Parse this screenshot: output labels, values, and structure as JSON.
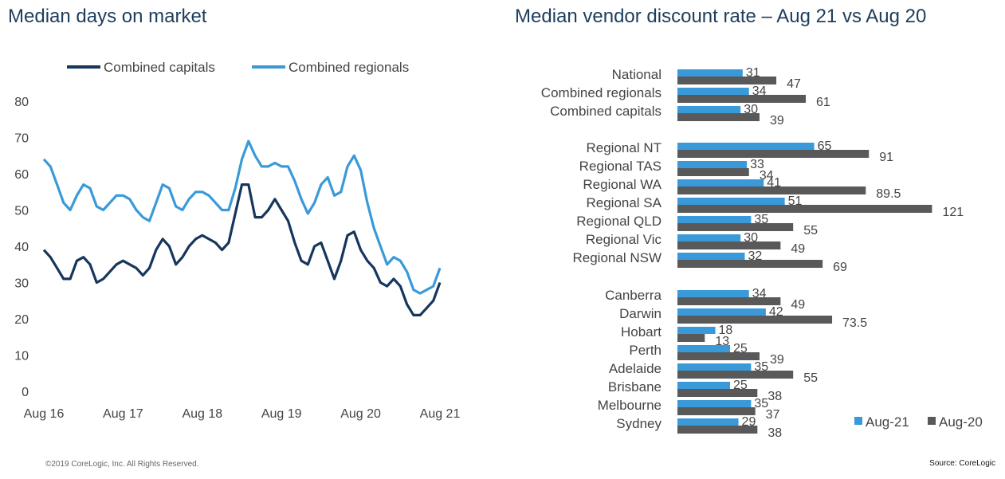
{
  "header": {
    "left_title": "Median days on market",
    "right_title": "Median vendor discount rate – Aug 21 vs Aug 20"
  },
  "footer": {
    "copyright": "©2019 CoreLogic, Inc. All Rights Reserved.",
    "source": "Source: CoreLogic"
  },
  "colors": {
    "capitals": "#16365c",
    "regionals": "#3a9ad9",
    "aug21": "#3a9ad9",
    "aug20": "#595959",
    "title": "#1d3d5c"
  },
  "chart_data": [
    {
      "type": "line",
      "title": "Median days on market",
      "x_ticks": [
        "Aug 16",
        "Aug 17",
        "Aug 18",
        "Aug 19",
        "Aug 20",
        "Aug 21"
      ],
      "ylim": [
        0,
        80
      ],
      "y_ticks": [
        0,
        10,
        20,
        30,
        40,
        50,
        60,
        70,
        80
      ],
      "grid": false,
      "legend_position": "top",
      "series": [
        {
          "name": "Combined capitals",
          "values": [
            39,
            37,
            34,
            31,
            31,
            36,
            37,
            35,
            30,
            31,
            33,
            35,
            36,
            35,
            34,
            32,
            34,
            39,
            42,
            40,
            35,
            37,
            40,
            42,
            43,
            42,
            41,
            39,
            41,
            49,
            57,
            57,
            48,
            48,
            50,
            53,
            50,
            47,
            41,
            36,
            35,
            40,
            41,
            36,
            31,
            36,
            43,
            44,
            39,
            36,
            34,
            30,
            29,
            31,
            29,
            24,
            21,
            21,
            23,
            25,
            30
          ]
        },
        {
          "name": "Combined regionals",
          "values": [
            64,
            62,
            57,
            52,
            50,
            54,
            57,
            56,
            51,
            50,
            52,
            54,
            54,
            53,
            50,
            48,
            47,
            52,
            57,
            56,
            51,
            50,
            53,
            55,
            55,
            54,
            52,
            50,
            50,
            56,
            64,
            69,
            65,
            62,
            62,
            63,
            62,
            62,
            58,
            53,
            49,
            52,
            57,
            59,
            54,
            55,
            62,
            65,
            61,
            52,
            45,
            40,
            35,
            37,
            36,
            33,
            28,
            27,
            28,
            29,
            34
          ]
        }
      ]
    },
    {
      "type": "bar",
      "orientation": "horizontal",
      "title": "Median vendor discount rate – Aug 21 vs Aug 20",
      "legend_position": "bottom-right",
      "series_names": [
        "Aug-21",
        "Aug-20"
      ],
      "groups": [
        [
          {
            "label": "National",
            "aug21": 31,
            "aug20": 47,
            "aug21_text": "31",
            "aug20_text": "47"
          },
          {
            "label": "Combined regionals",
            "aug21": 34,
            "aug20": 61,
            "aug21_text": "34",
            "aug20_text": "61"
          },
          {
            "label": "Combined capitals",
            "aug21": 30,
            "aug20": 39,
            "aug21_text": "30",
            "aug20_text": "39"
          }
        ],
        [
          {
            "label": "Regional NT",
            "aug21": 65,
            "aug20": 91,
            "aug21_text": "65",
            "aug20_text": "91"
          },
          {
            "label": "Regional TAS",
            "aug21": 33,
            "aug20": 34,
            "aug21_text": "33",
            "aug20_text": "34"
          },
          {
            "label": "Regional WA",
            "aug21": 41,
            "aug20": 89.5,
            "aug21_text": "41",
            "aug20_text": "89.5"
          },
          {
            "label": "Regional SA",
            "aug21": 51,
            "aug20": 121,
            "aug21_text": "51",
            "aug20_text": "121"
          },
          {
            "label": "Regional QLD",
            "aug21": 35,
            "aug20": 55,
            "aug21_text": "35",
            "aug20_text": "55"
          },
          {
            "label": "Regional Vic",
            "aug21": 30,
            "aug20": 49,
            "aug21_text": "30",
            "aug20_text": "49"
          },
          {
            "label": "Regional NSW",
            "aug21": 32,
            "aug20": 69,
            "aug21_text": "32",
            "aug20_text": "69"
          }
        ],
        [
          {
            "label": "Canberra",
            "aug21": 34,
            "aug20": 49,
            "aug21_text": "34",
            "aug20_text": "49"
          },
          {
            "label": "Darwin",
            "aug21": 42,
            "aug20": 73.5,
            "aug21_text": "42",
            "aug20_text": "73.5"
          },
          {
            "label": "Hobart",
            "aug21": 18,
            "aug20": 13,
            "aug21_text": "18",
            "aug20_text": "13"
          },
          {
            "label": "Perth",
            "aug21": 25,
            "aug20": 39,
            "aug21_text": "25",
            "aug20_text": "39"
          },
          {
            "label": "Adelaide",
            "aug21": 35,
            "aug20": 55,
            "aug21_text": "35",
            "aug20_text": "55"
          },
          {
            "label": "Brisbane",
            "aug21": 25,
            "aug20": 38,
            "aug21_text": "25",
            "aug20_text": "38"
          },
          {
            "label": "Melbourne",
            "aug21": 35,
            "aug20": 37,
            "aug21_text": "35",
            "aug20_text": "37"
          },
          {
            "label": "Sydney",
            "aug21": 29,
            "aug20": 38,
            "aug21_text": "29",
            "aug20_text": "38"
          }
        ]
      ]
    }
  ]
}
